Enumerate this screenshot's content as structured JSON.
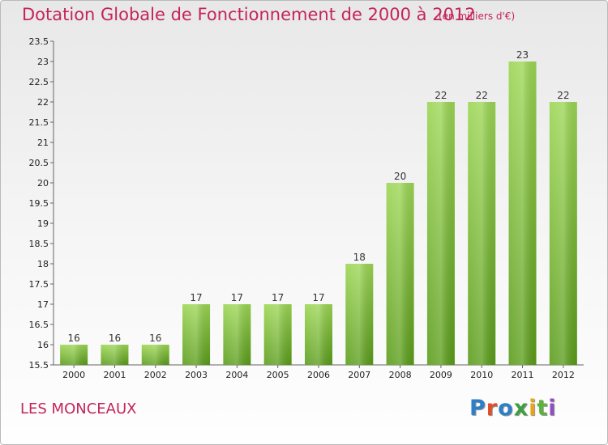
{
  "header": {
    "title": "Dotation Globale de Fonctionnement de 2000 à 2012",
    "subtitle": "(en milliers d'€)"
  },
  "footer": {
    "commune": "LES MONCEAUX",
    "logo_text": "Proxiti",
    "logo_colors": [
      "#2e7fc8",
      "#e14f2a",
      "#2e7fc8",
      "#3f9f3f",
      "#e8a51a",
      "#5ab33a",
      "#8f4fbf"
    ]
  },
  "colors": {
    "title": "#c4245a",
    "bar_top": "#9cd654",
    "bar_bottom": "#5a9c1a",
    "axis": "#666666"
  },
  "chart_data": {
    "type": "bar",
    "title": "Dotation Globale de Fonctionnement de 2000 à 2012",
    "xlabel": "",
    "ylabel": "",
    "categories": [
      "2000",
      "2001",
      "2002",
      "2003",
      "2004",
      "2005",
      "2006",
      "2007",
      "2008",
      "2009",
      "2010",
      "2011",
      "2012"
    ],
    "values": [
      16,
      16,
      16,
      17,
      17,
      17,
      17,
      18,
      20,
      22,
      22,
      23,
      22
    ],
    "value_labels": [
      "16",
      "16",
      "16",
      "17",
      "17",
      "17",
      "17",
      "18",
      "20",
      "22",
      "22",
      "23",
      "22"
    ],
    "ylim": [
      15.5,
      23.5
    ],
    "yticks": [
      15.5,
      16,
      16.5,
      17,
      17.5,
      18,
      18.5,
      19,
      19.5,
      20,
      20.5,
      21,
      21.5,
      22,
      22.5,
      23,
      23.5
    ],
    "ytick_labels": [
      "15.5",
      "16",
      "16.5",
      "17",
      "17.5",
      "18",
      "18.5",
      "19",
      "19.5",
      "20",
      "20.5",
      "21",
      "21.5",
      "22",
      "22.5",
      "23",
      "23.5"
    ],
    "grid": false,
    "legend": "none"
  }
}
